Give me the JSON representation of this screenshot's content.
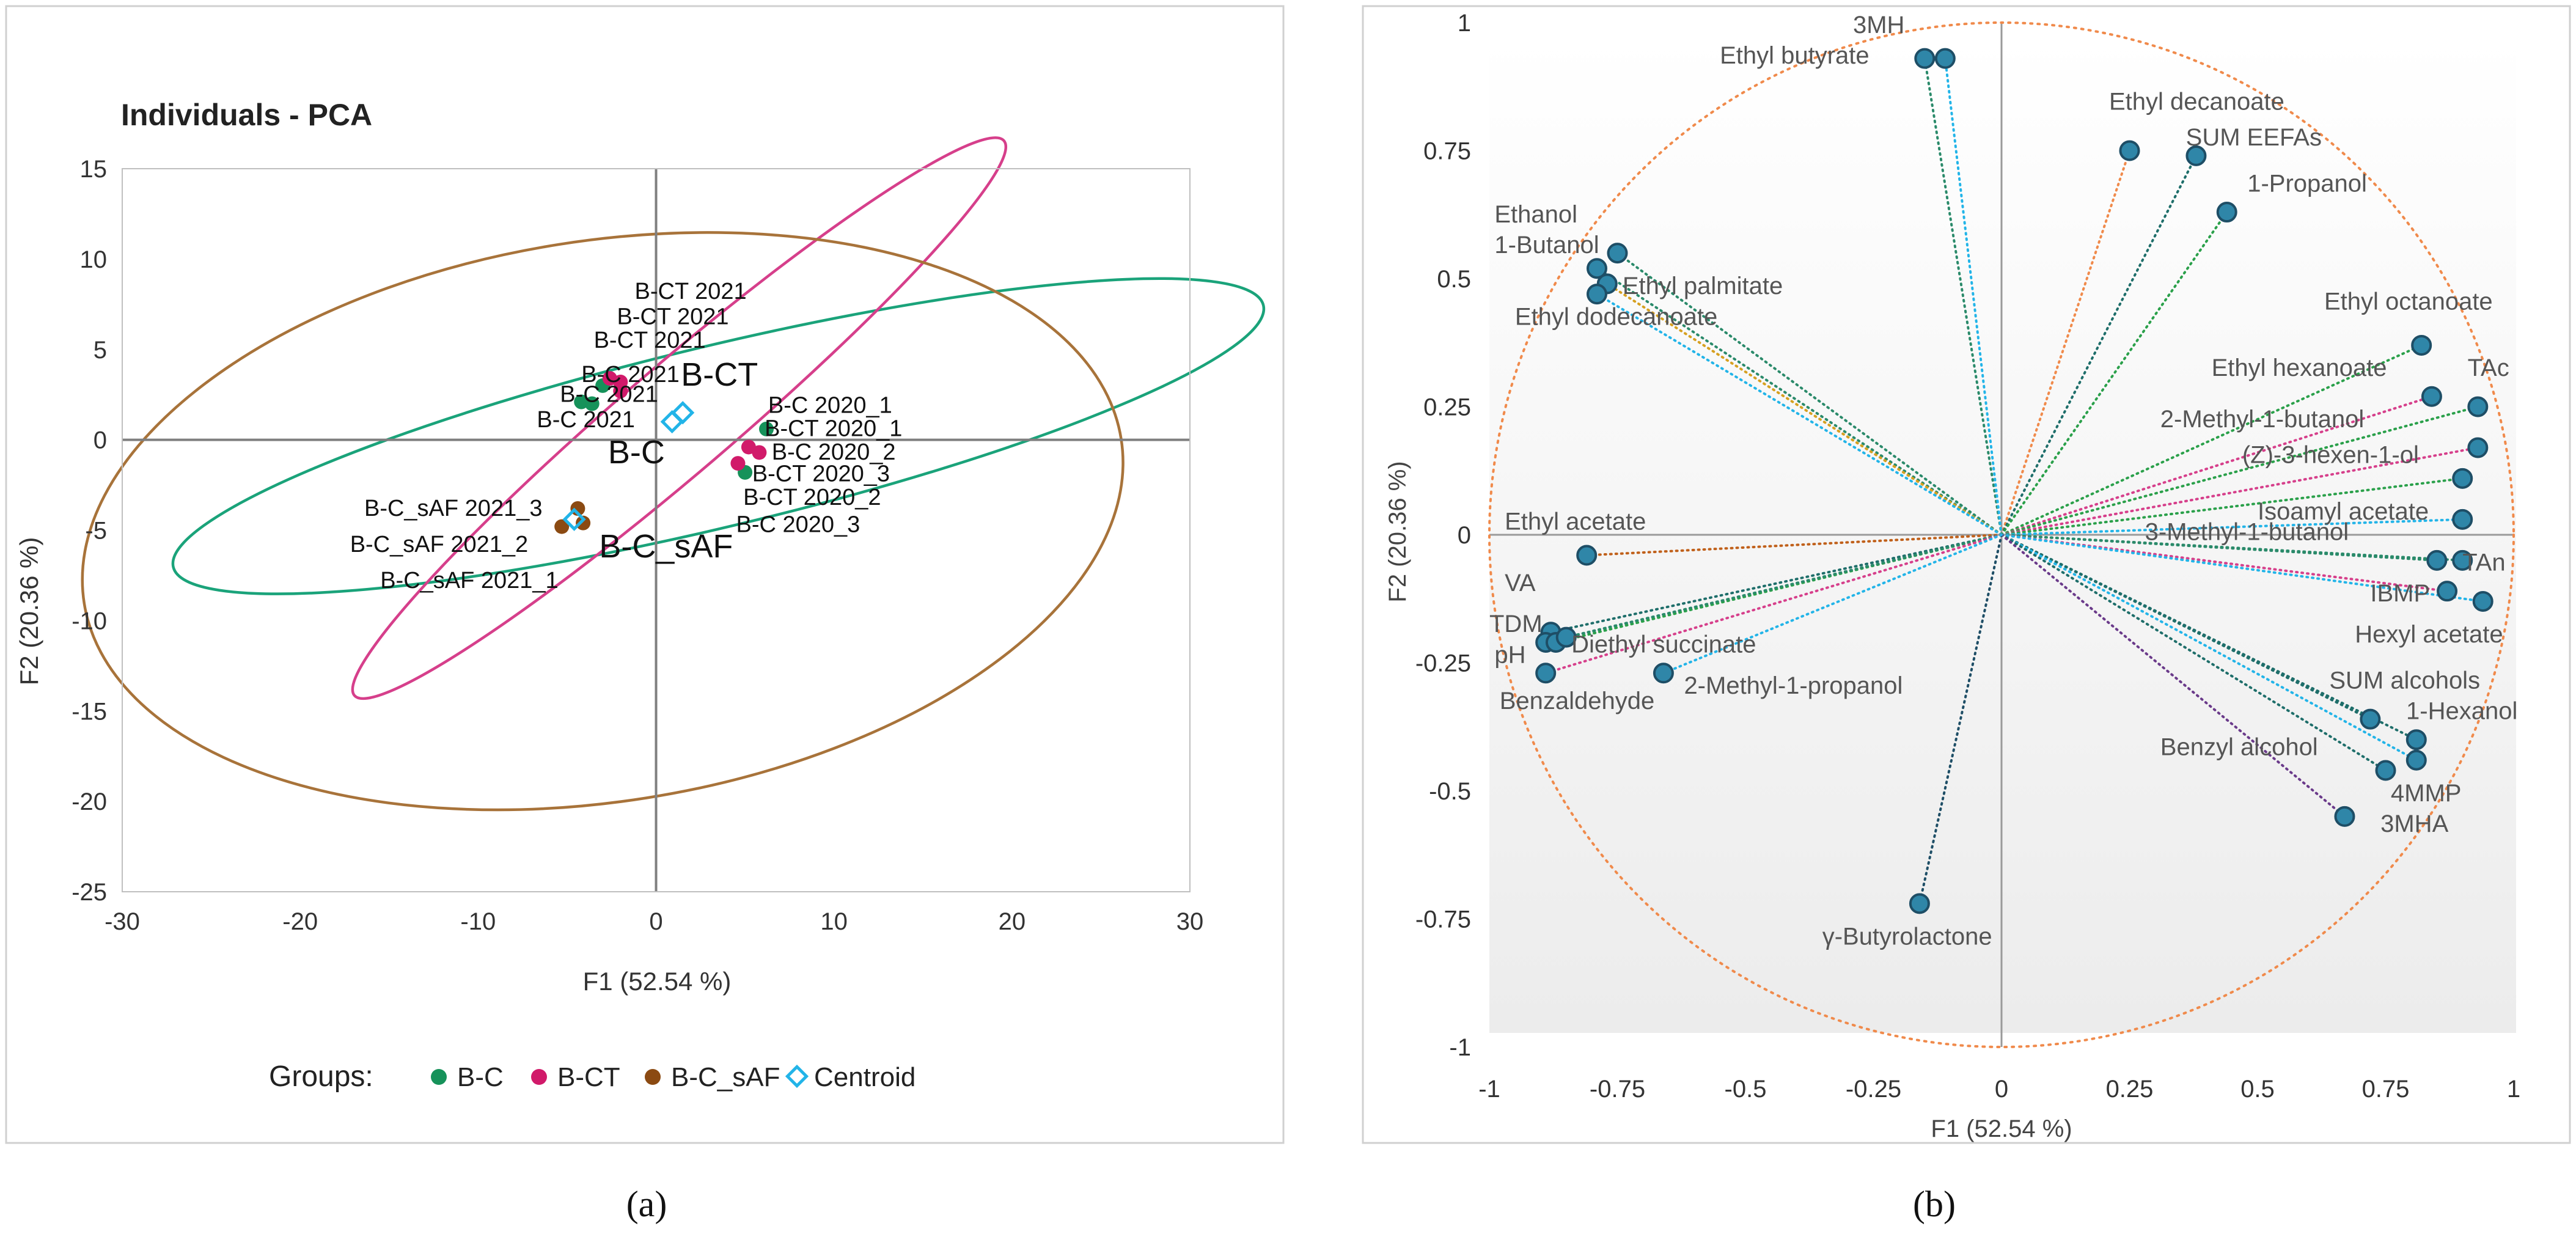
{
  "colors": {
    "bc": "#16925a",
    "bct": "#d11a6a",
    "bcsaf": "#8b4a12",
    "centroid": "#22b4e8",
    "ellipse_bc": "#1aa37a",
    "ellipse_bct": "#d63f8b",
    "ellipse_bcsaf": "#a8733a",
    "circle": "#f08a4b",
    "point_fill": "#2f86a8",
    "point_stroke": "#1e4e66",
    "axis": "#7f7f7f",
    "text": "#222222",
    "label_b": "#555555"
  },
  "panel_a": {
    "title": "Individuals - PCA",
    "xlabel": "F1 (52.54 %)",
    "ylabel": "F2 (20.36 %)",
    "legend_title": "Groups:",
    "legend_items": [
      "B-C",
      "B-CT",
      "B-C_sAF",
      "Centroid"
    ],
    "caption": "(a)"
  },
  "panel_b": {
    "xlabel": "F1 (52.54 %)",
    "ylabel": "F2 (20.36 %)",
    "caption": "(b)"
  },
  "chart_data": [
    {
      "type": "scatter",
      "title": "Individuals - PCA",
      "xlabel": "F1 (52.54 %)",
      "ylabel": "F2 (20.36 %)",
      "xlim": [
        -30,
        30
      ],
      "ylim": [
        -25,
        15
      ],
      "xticks": [
        "-30",
        "-20",
        "-10",
        "0",
        "10",
        "20",
        "30"
      ],
      "yticks": [
        "15",
        "10",
        "5",
        "0",
        "-5",
        "-10",
        "-15",
        "-20",
        "-25"
      ],
      "grid": false,
      "legend_position": "bottom",
      "series": [
        {
          "name": "B-C",
          "points": [
            {
              "x": -3.0,
              "y": 3.0
            },
            {
              "x": -4.2,
              "y": 2.1
            },
            {
              "x": -3.6,
              "y": 2.0
            },
            {
              "x": 6.2,
              "y": 0.6
            },
            {
              "x": 5.0,
              "y": -1.8
            }
          ]
        },
        {
          "name": "B-CT",
          "points": [
            {
              "x": -2.6,
              "y": 3.4
            },
            {
              "x": -2.0,
              "y": 3.2
            },
            {
              "x": -2.0,
              "y": 2.7
            },
            {
              "x": 5.2,
              "y": -0.4
            },
            {
              "x": 5.8,
              "y": -0.7
            },
            {
              "x": 4.6,
              "y": -1.3
            }
          ]
        },
        {
          "name": "B-C_sAF",
          "points": [
            {
              "x": -4.4,
              "y": -3.8
            },
            {
              "x": -5.3,
              "y": -4.8
            },
            {
              "x": -4.1,
              "y": -4.6
            }
          ]
        },
        {
          "name": "Centroid",
          "points": [
            {
              "x": 0.9,
              "y": 1.0
            },
            {
              "x": 1.5,
              "y": 1.5
            },
            {
              "x": -4.6,
              "y": -4.4
            }
          ]
        }
      ],
      "labels": [
        {
          "text": "B-CT 2021",
          "x": -1.2,
          "y": 7.8
        },
        {
          "text": "B-CT 2021",
          "x": -2.2,
          "y": 6.4
        },
        {
          "text": "B-CT 2021",
          "x": -3.5,
          "y": 5.1
        },
        {
          "text": "B-C 2021",
          "x": -4.2,
          "y": 3.2
        },
        {
          "text": "B-C 2021",
          "x": -5.4,
          "y": 2.1
        },
        {
          "text": "B-C 2021",
          "x": -6.7,
          "y": 0.7
        },
        {
          "text": "B-CT",
          "x": 1.4,
          "y": 3.0
        },
        {
          "text": "B-C",
          "x": -2.7,
          "y": -1.3
        },
        {
          "text": "B-C 2020_1",
          "x": 6.3,
          "y": 1.5
        },
        {
          "text": "B-CT 2020_1",
          "x": 6.1,
          "y": 0.2
        },
        {
          "text": "B-C 2020_2",
          "x": 6.5,
          "y": -1.1
        },
        {
          "text": "B-CT 2020_3",
          "x": 5.4,
          "y": -2.3
        },
        {
          "text": "B-CT 2020_2",
          "x": 4.9,
          "y": -3.6
        },
        {
          "text": "B-C 2020_3",
          "x": 4.5,
          "y": -5.1
        },
        {
          "text": "B-C_sAF 2021_3",
          "x": -16.4,
          "y": -4.2
        },
        {
          "text": "B-C_sAF 2021_2",
          "x": -17.2,
          "y": -6.2
        },
        {
          "text": "B-C_sAF 2021_1",
          "x": -15.5,
          "y": -8.2
        },
        {
          "text": "B-C_sAF",
          "x": -3.2,
          "y": -6.5
        }
      ],
      "ellipses": [
        {
          "group": "B-C",
          "cx": 3.5,
          "cy": 0.2,
          "rx": 31.5,
          "ry": 5.0,
          "angle_deg": 13.5
        },
        {
          "group": "B-CT",
          "cx": 1.3,
          "cy": 1.2,
          "rx": 24.0,
          "ry": 3.0,
          "angle_deg": 40.5
        },
        {
          "group": "B-C_sAF",
          "cx": -3.0,
          "cy": -4.5,
          "rx": 29.5,
          "ry": 15.5,
          "angle_deg": 9.0
        }
      ]
    },
    {
      "type": "scatter",
      "title": "",
      "xlabel": "F1 (52.54 %)",
      "ylabel": "F2 (20.36 %)",
      "xlim": [
        -1,
        1
      ],
      "ylim": [
        -1,
        1
      ],
      "xticks": [
        "-1",
        "-0.75",
        "-0.5",
        "-0.25",
        "0",
        "0.25",
        "0.5",
        "0.75",
        "1"
      ],
      "yticks": [
        "1",
        "0.75",
        "0.5",
        "0.25",
        "0",
        "-0.25",
        "-0.5",
        "-0.75",
        "-1"
      ],
      "grid": false,
      "correlation_circle": true,
      "points": [
        {
          "x": -0.15,
          "y": 0.93,
          "color": "#2a8a6a"
        },
        {
          "x": -0.11,
          "y": 0.93,
          "color": "#22b4e8"
        },
        {
          "x": 0.25,
          "y": 0.75,
          "color": "#f08a4b"
        },
        {
          "x": 0.38,
          "y": 0.74,
          "color": "#1e6e6a"
        },
        {
          "x": 0.44,
          "y": 0.63,
          "color": "#2aa04a"
        },
        {
          "x": -0.75,
          "y": 0.55,
          "color": "#2a8a6a"
        },
        {
          "x": -0.79,
          "y": 0.52,
          "color": "#2a8a6a"
        },
        {
          "x": -0.77,
          "y": 0.49,
          "color": "#d6a020"
        },
        {
          "x": -0.79,
          "y": 0.47,
          "color": "#22b4e8"
        },
        {
          "x": 0.82,
          "y": 0.37,
          "color": "#2aa04a"
        },
        {
          "x": 0.84,
          "y": 0.27,
          "color": "#d63f8b"
        },
        {
          "x": 0.93,
          "y": 0.25,
          "color": "#2aa04a"
        },
        {
          "x": 0.93,
          "y": 0.17,
          "color": "#d63f8b"
        },
        {
          "x": 0.9,
          "y": 0.11,
          "color": "#2aa04a"
        },
        {
          "x": 0.9,
          "y": 0.03,
          "color": "#22b4e8"
        },
        {
          "x": 0.9,
          "y": -0.05,
          "color": "#2a8a6a"
        },
        {
          "x": 0.85,
          "y": -0.05,
          "color": "#2a8a6a"
        },
        {
          "x": 0.87,
          "y": -0.11,
          "color": "#d63f8b"
        },
        {
          "x": 0.94,
          "y": -0.13,
          "color": "#22b4e8"
        },
        {
          "x": 0.72,
          "y": -0.36,
          "color": "#1e6e6a"
        },
        {
          "x": 0.81,
          "y": -0.4,
          "color": "#1e6e6a"
        },
        {
          "x": 0.81,
          "y": -0.44,
          "color": "#22b4e8"
        },
        {
          "x": 0.75,
          "y": -0.46,
          "color": "#1e6e6a"
        },
        {
          "x": 0.67,
          "y": -0.55,
          "color": "#6a3a8a"
        },
        {
          "x": -0.16,
          "y": -0.72,
          "color": "#1e4e66"
        },
        {
          "x": -0.81,
          "y": -0.04,
          "color": "#c0601a"
        },
        {
          "x": -0.88,
          "y": -0.19,
          "color": "#1e6e6a"
        },
        {
          "x": -0.89,
          "y": -0.21,
          "color": "#1e6e6a"
        },
        {
          "x": -0.87,
          "y": -0.21,
          "color": "#2aa04a"
        },
        {
          "x": -0.85,
          "y": -0.2,
          "color": "#2a8a6a"
        },
        {
          "x": -0.89,
          "y": -0.27,
          "color": "#d63f8b"
        },
        {
          "x": -0.66,
          "y": -0.27,
          "color": "#22b4e8"
        }
      ],
      "labels": [
        {
          "text": "3MH",
          "x": -0.29,
          "y": 0.98
        },
        {
          "text": "Ethyl butyrate",
          "x": -0.55,
          "y": 0.92
        },
        {
          "text": "Ethyl decanoate",
          "x": 0.21,
          "y": 0.83
        },
        {
          "text": "SUM EEFAs",
          "x": 0.36,
          "y": 0.76
        },
        {
          "text": "1-Propanol",
          "x": 0.48,
          "y": 0.67
        },
        {
          "text": "Ethanol",
          "x": -0.99,
          "y": 0.61
        },
        {
          "text": "1-Butanol",
          "x": -0.99,
          "y": 0.55
        },
        {
          "text": "Ethyl palmitate",
          "x": -0.74,
          "y": 0.47
        },
        {
          "text": "Ethyl dodecanoate",
          "x": -0.95,
          "y": 0.41
        },
        {
          "text": "Ethyl octanoate",
          "x": 0.63,
          "y": 0.44
        },
        {
          "text": "Ethyl hexanoate",
          "x": 0.41,
          "y": 0.31
        },
        {
          "text": "TAc",
          "x": 0.91,
          "y": 0.31
        },
        {
          "text": "2-Methyl-1-butanol",
          "x": 0.31,
          "y": 0.21
        },
        {
          "text": "(Z)-3-hexen-1-ol",
          "x": 0.47,
          "y": 0.14
        },
        {
          "text": "Isoamyl acetate",
          "x": 0.5,
          "y": 0.03
        },
        {
          "text": "3-Methyl-1-butanol",
          "x": 0.28,
          "y": -0.01
        },
        {
          "text": "TAn",
          "x": 0.9,
          "y": -0.07
        },
        {
          "text": "IBMP",
          "x": 0.72,
          "y": -0.13
        },
        {
          "text": "Hexyl acetate",
          "x": 0.69,
          "y": -0.21
        },
        {
          "text": "SUM alcohols",
          "x": 0.64,
          "y": -0.3
        },
        {
          "text": "1-Hexanol",
          "x": 0.79,
          "y": -0.36
        },
        {
          "text": "Benzyl alcohol",
          "x": 0.31,
          "y": -0.43
        },
        {
          "text": "4MMP",
          "x": 0.76,
          "y": -0.52
        },
        {
          "text": "3MHA",
          "x": 0.74,
          "y": -0.58
        },
        {
          "text": "Ethyl acetate",
          "x": -0.97,
          "y": 0.01
        },
        {
          "text": "VA",
          "x": -0.97,
          "y": -0.11
        },
        {
          "text": "TDM",
          "x": -1.0,
          "y": -0.19
        },
        {
          "text": "pH",
          "x": -0.99,
          "y": -0.25
        },
        {
          "text": "Diethyl succinate",
          "x": -0.84,
          "y": -0.23
        },
        {
          "text": "2-Methyl-1-propanol",
          "x": -0.62,
          "y": -0.31
        },
        {
          "text": "Benzaldehyde",
          "x": -0.98,
          "y": -0.34
        },
        {
          "text": "γ-Butyrolactone",
          "x": -0.35,
          "y": -0.8
        }
      ]
    }
  ]
}
